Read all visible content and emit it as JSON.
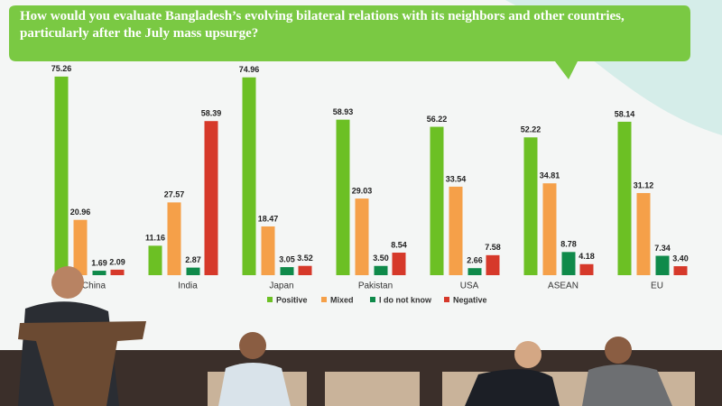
{
  "chart_data": {
    "type": "bar",
    "title": "How would you evaluate Bangladesh’s evolving bilateral relations with its neighbors and other countries, particularly after the July mass upsurge?",
    "categories": [
      "China",
      "India",
      "Japan",
      "Pakistan",
      "USA",
      "ASEAN",
      "EU"
    ],
    "series": [
      {
        "name": "Positive",
        "color": "#6cc024",
        "values": [
          75.26,
          11.16,
          74.96,
          58.93,
          56.22,
          52.22,
          58.14
        ],
        "value_labels": [
          "75.26",
          "11.16",
          "74.96",
          "58.93",
          "56.22",
          "52.22",
          "58.14"
        ]
      },
      {
        "name": "Mixed",
        "color": "#f5a049",
        "values": [
          20.96,
          27.57,
          18.47,
          29.03,
          33.54,
          34.81,
          31.12
        ],
        "value_labels": [
          "20.96",
          "27.57",
          "18.47",
          "29.03",
          "33.54",
          "34.81",
          "31.12"
        ]
      },
      {
        "name": "I do not know",
        "color": "#0f8a4a",
        "values": [
          1.69,
          2.87,
          3.05,
          3.5,
          2.66,
          8.78,
          7.34
        ],
        "value_labels": [
          "1.69",
          "2.87",
          "3.05",
          "3.50",
          "2.66",
          "8.78",
          "7.34"
        ]
      },
      {
        "name": "Negative",
        "color": "#d6392a",
        "values": [
          2.09,
          58.39,
          3.52,
          8.54,
          7.58,
          4.18,
          3.4
        ],
        "value_labels": [
          "2.09",
          "58.39",
          "3.52",
          "8.54",
          "7.58",
          "4.18",
          "3.40"
        ]
      }
    ],
    "ylim": [
      0,
      80
    ]
  }
}
